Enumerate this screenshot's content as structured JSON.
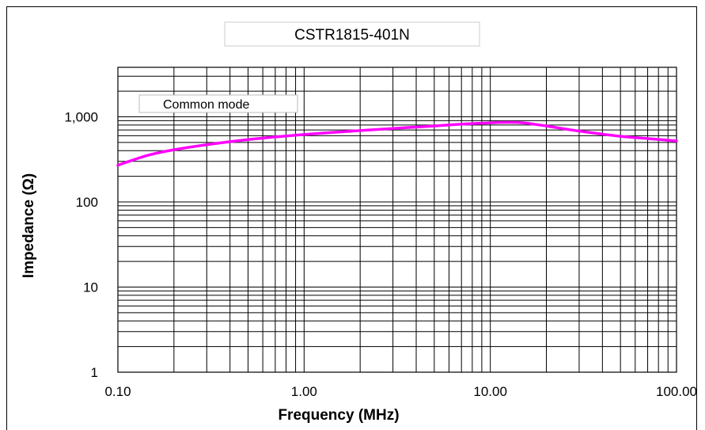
{
  "chart_data": {
    "type": "line",
    "title": "CSTR1815-401N",
    "xlabel": "Frequency (MHz)",
    "ylabel": "Impedance (Ω)",
    "x_scale": "log",
    "y_scale": "log",
    "xlim": [
      0.1,
      100
    ],
    "ylim": [
      1,
      4000
    ],
    "x_ticks": [
      {
        "value": 0.1,
        "label": "0.10"
      },
      {
        "value": 1,
        "label": "1.00"
      },
      {
        "value": 10,
        "label": "10.00"
      },
      {
        "value": 100,
        "label": "100.00"
      }
    ],
    "y_ticks": [
      {
        "value": 1,
        "label": "1"
      },
      {
        "value": 10,
        "label": "10"
      },
      {
        "value": 100,
        "label": "100"
      },
      {
        "value": 1000,
        "label": "1,000"
      }
    ],
    "grid": true,
    "legend_position": "top-left",
    "series": [
      {
        "name": "Common mode",
        "color": "#ff00ff",
        "x": [
          0.1,
          0.12,
          0.15,
          0.2,
          0.3,
          0.5,
          0.7,
          1,
          1.5,
          2,
          3,
          5,
          7,
          10,
          12,
          15,
          20,
          30,
          50,
          70,
          100
        ],
        "y": [
          270,
          310,
          360,
          410,
          470,
          540,
          580,
          620,
          660,
          690,
          730,
          780,
          820,
          850,
          860,
          850,
          780,
          680,
          590,
          555,
          520
        ]
      }
    ]
  }
}
